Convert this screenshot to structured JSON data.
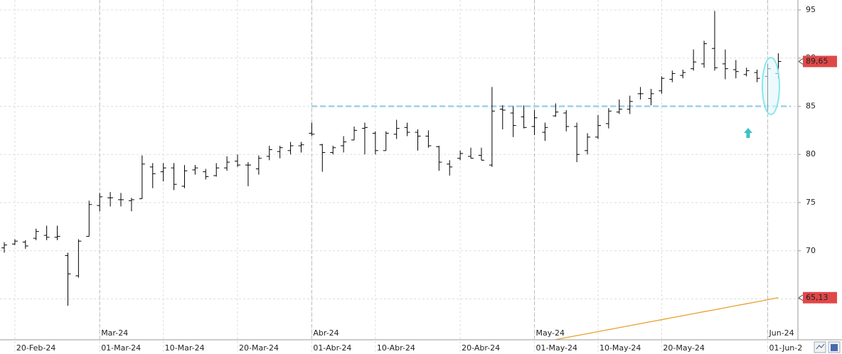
{
  "chart_data": {
    "type": "ohlc",
    "color": "#000000",
    "categories": [
      null,
      "20-Feb-24",
      null,
      null,
      null,
      null,
      null,
      null,
      null,
      "01-Mar-24",
      null,
      null,
      null,
      null,
      null,
      "10-Mar-24",
      null,
      null,
      null,
      null,
      null,
      null,
      "20-Mar-24",
      null,
      null,
      null,
      null,
      null,
      null,
      "01-Abr-24",
      null,
      null,
      null,
      null,
      null,
      "10-Abr-24",
      null,
      null,
      null,
      null,
      null,
      null,
      null,
      "20-Abr-24",
      null,
      null,
      null,
      null,
      null,
      null,
      "01-May-24",
      null,
      null,
      null,
      null,
      null,
      "10-May-24",
      null,
      null,
      null,
      null,
      null,
      "20-May-24",
      null,
      null,
      null,
      null,
      null,
      null,
      null,
      null,
      null,
      "01-Jun-2",
      null
    ],
    "month_labels": [
      null,
      null,
      null,
      null,
      null,
      null,
      null,
      null,
      null,
      "Mar-24",
      null,
      null,
      null,
      null,
      null,
      null,
      null,
      null,
      null,
      null,
      null,
      null,
      null,
      null,
      null,
      null,
      null,
      null,
      null,
      "Abr-24",
      null,
      null,
      null,
      null,
      null,
      null,
      null,
      null,
      null,
      null,
      null,
      null,
      null,
      null,
      null,
      null,
      null,
      null,
      null,
      null,
      "May-24",
      null,
      null,
      null,
      null,
      null,
      null,
      null,
      null,
      null,
      null,
      null,
      null,
      null,
      null,
      null,
      null,
      null,
      null,
      null,
      null,
      null,
      "Jun-24",
      null
    ],
    "open": [
      70.3,
      70.7,
      70.9,
      71.3,
      71.6,
      71.4,
      69.5,
      67.4,
      71.5,
      74.7,
      75.5,
      75.3,
      75.2,
      75.4,
      78.7,
      78.2,
      78.6,
      76.7,
      78.4,
      78.2,
      77.8,
      78.6,
      79.3,
      78.9,
      78.5,
      79.8,
      80.3,
      80.4,
      80.9,
      82.2,
      81.0,
      80.2,
      80.9,
      81.5,
      82.7,
      82.2,
      80.4,
      82.1,
      82.8,
      82.3,
      81.9,
      80.8,
      79.0,
      79.6,
      79.8,
      79.9,
      78.9,
      84.7,
      84.3,
      83.9,
      82.9,
      82.3,
      84.0,
      84.3,
      82.9,
      80.4,
      81.8,
      83.2,
      84.4,
      84.7,
      86.3,
      85.8,
      86.6,
      87.8,
      88.2,
      88.9,
      89.4,
      91.0,
      89.4,
      88.8,
      88.3,
      88.5,
      88.1,
      88.4
    ],
    "high": [
      70.9,
      71.2,
      71.1,
      72.3,
      72.6,
      72.6,
      69.8,
      71.2,
      75.2,
      76.0,
      76.1,
      76.0,
      75.5,
      79.9,
      79.1,
      79.1,
      79.1,
      78.9,
      78.9,
      78.5,
      79.1,
      79.8,
      80.0,
      79.2,
      79.9,
      80.9,
      80.9,
      81.3,
      81.3,
      83.3,
      81.1,
      80.9,
      81.9,
      82.9,
      83.3,
      82.4,
      82.4,
      83.6,
      83.3,
      82.6,
      82.5,
      80.9,
      79.4,
      80.4,
      80.7,
      80.7,
      87.0,
      85.1,
      85.0,
      85.1,
      84.6,
      83.3,
      85.3,
      84.6,
      83.3,
      82.2,
      84.1,
      84.8,
      85.7,
      86.1,
      87.0,
      86.8,
      88.1,
      88.7,
      88.8,
      90.9,
      91.8,
      94.9,
      90.9,
      89.8,
      89.0,
      88.8,
      89.4,
      90.5
    ],
    "low": [
      69.8,
      70.6,
      70.2,
      71.1,
      71.1,
      71.1,
      64.3,
      67.2,
      71.5,
      74.1,
      74.6,
      74.6,
      74.1,
      75.4,
      76.5,
      77.2,
      76.3,
      76.5,
      77.9,
      77.4,
      77.7,
      78.3,
      78.7,
      76.7,
      77.9,
      79.4,
      79.6,
      80.0,
      80.2,
      81.9,
      78.2,
      80.0,
      80.2,
      81.5,
      80.0,
      80.0,
      80.4,
      81.6,
      81.9,
      80.4,
      80.7,
      78.3,
      77.8,
      79.4,
      79.6,
      79.4,
      78.7,
      82.6,
      81.8,
      82.7,
      82.0,
      81.4,
      83.9,
      82.4,
      79.2,
      80.0,
      81.6,
      82.7,
      84.2,
      84.2,
      85.7,
      85.1,
      86.3,
      87.5,
      87.9,
      88.7,
      89.0,
      88.7,
      87.8,
      87.9,
      88.1,
      87.5,
      84.4,
      87.9
    ],
    "close": [
      70.6,
      71.0,
      70.5,
      72.0,
      71.4,
      71.5,
      67.6,
      71.0,
      74.8,
      75.6,
      75.5,
      75.3,
      75.3,
      79.0,
      78.0,
      78.6,
      76.9,
      78.3,
      78.6,
      77.7,
      78.6,
      79.2,
      78.9,
      78.9,
      79.6,
      80.5,
      80.7,
      80.9,
      81.0,
      82.1,
      80.2,
      80.7,
      81.3,
      82.5,
      82.8,
      80.4,
      82.2,
      82.7,
      82.3,
      81.9,
      80.9,
      79.2,
      78.7,
      80.1,
      79.6,
      79.4,
      84.5,
      84.6,
      83.0,
      82.8,
      83.8,
      82.8,
      84.4,
      82.9,
      80.0,
      81.8,
      83.0,
      84.5,
      84.7,
      85.5,
      86.3,
      86.3,
      87.9,
      88.4,
      88.5,
      89.6,
      91.5,
      89.0,
      88.9,
      88.6,
      88.7,
      87.9,
      88.9,
      89.65
    ],
    "close_label": "89,65",
    "moving_average": {
      "color": "#e8a030",
      "label": "65,13",
      "values": [
        null,
        null,
        null,
        null,
        null,
        null,
        null,
        null,
        null,
        null,
        null,
        null,
        null,
        null,
        null,
        null,
        null,
        null,
        null,
        null,
        null,
        null,
        null,
        null,
        null,
        null,
        null,
        null,
        null,
        null,
        null,
        null,
        null,
        null,
        null,
        null,
        null,
        null,
        null,
        null,
        null,
        null,
        null,
        null,
        null,
        null,
        null,
        null,
        null,
        null,
        null,
        null,
        60.78,
        60.99,
        61.19,
        61.4,
        61.61,
        61.81,
        62.02,
        62.23,
        62.44,
        62.64,
        62.85,
        63.06,
        63.26,
        63.47,
        63.68,
        63.88,
        64.09,
        64.3,
        64.5,
        64.71,
        64.92,
        65.13
      ]
    },
    "support_level": 85,
    "support_color": "#9fd0e8",
    "label_color": "#e04848",
    "ylim": [
      60.76,
      96.03
    ],
    "yticks": [
      65,
      70,
      75,
      80,
      85,
      90,
      95
    ],
    "grid": true
  }
}
